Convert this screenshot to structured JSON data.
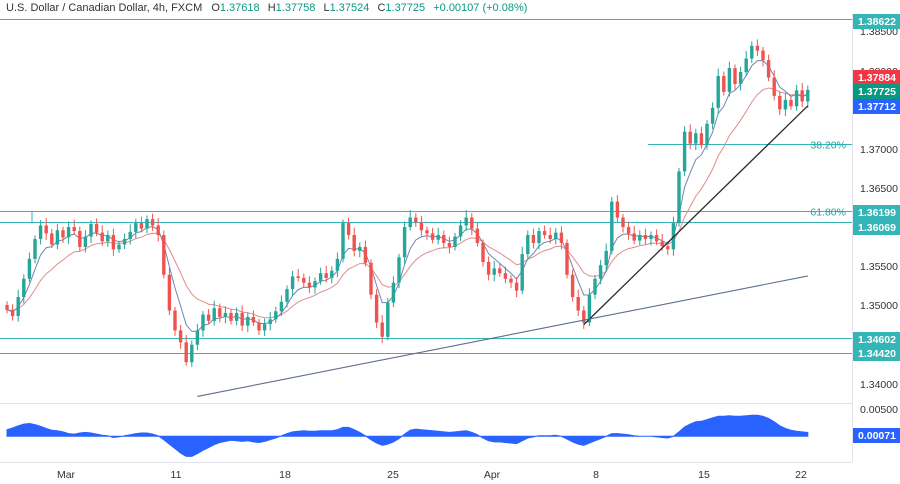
{
  "legend": {
    "symbol": "U.S. Dollar / Canadian Dollar, 4h, FXCM",
    "open_label": "O",
    "open": "1.37618",
    "high_label": "H",
    "high": "1.37758",
    "low_label": "L",
    "low": "1.37524",
    "close_label": "C",
    "close": "1.37725",
    "change": "+0.00107 (+0.08%)"
  },
  "colors": {
    "up": "#26a69a",
    "down": "#ef5350",
    "level": "#35b5b5",
    "fast_ma": "#6f86b0",
    "slow_ma": "#e08c8c",
    "trendline": "#2b2b2b",
    "long_trendline": "#5c6f8a",
    "oscillator": "#2962ff",
    "badge_last": "#089981",
    "badge_ma_red": "#f23645",
    "badge_ma_blue": "#2962ff",
    "badge_level": "#35b5b5"
  },
  "chart_data": {
    "type": "candlestick",
    "timeframe": "4h",
    "ylim": [
      1.3385,
      1.3868
    ],
    "price_ticks": [
      "1.38500",
      "1.38000",
      "1.37000",
      "1.36500",
      "1.35500",
      "1.35000",
      "1.34000"
    ],
    "x_ticks": [
      "Mar",
      "11",
      "18",
      "25",
      "Apr",
      "8",
      "15",
      "22"
    ],
    "closes": [
      1.3496,
      1.3488,
      1.3512,
      1.3535,
      1.356,
      1.3585,
      1.3602,
      1.3592,
      1.3578,
      1.3596,
      1.3587,
      1.36,
      1.3595,
      1.3575,
      1.3588,
      1.3604,
      1.3593,
      1.3582,
      1.359,
      1.3572,
      1.3578,
      1.3585,
      1.3594,
      1.3605,
      1.3598,
      1.361,
      1.3602,
      1.359,
      1.354,
      1.3495,
      1.347,
      1.3455,
      1.343,
      1.3452,
      1.347,
      1.349,
      1.3482,
      1.3498,
      1.3487,
      1.3492,
      1.3482,
      1.3492,
      1.3476,
      1.3487,
      1.348,
      1.347,
      1.3478,
      1.3484,
      1.3494,
      1.3506,
      1.3522,
      1.3538,
      1.3536,
      1.353,
      1.3524,
      1.3532,
      1.3542,
      1.3536,
      1.3545,
      1.356,
      1.3605,
      1.359,
      1.357,
      1.3575,
      1.3555,
      1.3515,
      1.348,
      1.3462,
      1.3505,
      1.353,
      1.3562,
      1.36,
      1.3612,
      1.3606,
      1.3596,
      1.3592,
      1.3584,
      1.359,
      1.358,
      1.3575,
      1.3588,
      1.3602,
      1.3612,
      1.3598,
      1.358,
      1.3556,
      1.354,
      1.3548,
      1.3542,
      1.3535,
      1.353,
      1.352,
      1.3566,
      1.359,
      1.358,
      1.3595,
      1.359,
      1.3585,
      1.3593,
      1.358,
      1.354,
      1.3512,
      1.3495,
      1.348,
      1.3515,
      1.3535,
      1.3552,
      1.357,
      1.3632,
      1.3612,
      1.36,
      1.3592,
      1.3583,
      1.359,
      1.3585,
      1.359,
      1.3582,
      1.3576,
      1.3572,
      1.3605,
      1.367,
      1.372,
      1.3705,
      1.3718,
      1.3703,
      1.373,
      1.375,
      1.379,
      1.377,
      1.38,
      1.378,
      1.3795,
      1.3812,
      1.3828,
      1.3822,
      1.381,
      1.3788,
      1.3765,
      1.3748,
      1.376,
      1.3752,
      1.3772,
      1.3758,
      1.37725
    ],
    "levels": [
      {
        "price": 1.38622,
        "label": "1.38622"
      },
      {
        "price": 1.36199,
        "label": "1.36199"
      },
      {
        "price": 1.36069,
        "label": "1.36069"
      },
      {
        "price": 1.34602,
        "label": "1.34602"
      },
      {
        "price": 1.3442,
        "label": "1.34420"
      }
    ],
    "fibonacci": [
      {
        "price": 1.37045,
        "label": "38.20%"
      },
      {
        "price": 1.36199,
        "label": "61.80%"
      }
    ],
    "trendlines": [
      {
        "from": [
          103,
          1.34773
        ],
        "to": [
          143,
          1.37525
        ]
      },
      {
        "from": [
          34,
          1.3387
        ],
        "to": [
          143,
          1.35385
        ]
      }
    ],
    "price_badges": [
      {
        "price": 1.38622,
        "label": "1.38622",
        "kind": "level"
      },
      {
        "price": 1.37884,
        "label": "1.37884",
        "kind": "ma_red"
      },
      {
        "price": 1.37725,
        "label": "1.37725",
        "kind": "last"
      },
      {
        "price": 1.37712,
        "label": "1.37712",
        "kind": "ma_blue"
      },
      {
        "price": 1.36199,
        "label": "1.36199",
        "kind": "level"
      },
      {
        "price": 1.36069,
        "label": "1.36069",
        "kind": "level"
      },
      {
        "price": 1.34602,
        "label": "1.34602",
        "kind": "level"
      },
      {
        "price": 1.3442,
        "label": "1.34420",
        "kind": "level"
      }
    ],
    "oscillator": {
      "ylim": [
        -0.0046,
        0.0058
      ],
      "ticks": [
        "0.00500"
      ],
      "current_label": "0.00071",
      "values": [
        0.0012,
        0.0015,
        0.0019,
        0.0022,
        0.0023,
        0.0021,
        0.0018,
        0.0014,
        0.0011,
        0.001,
        0.0008,
        0.0005,
        0.0004,
        0.0006,
        0.0007,
        0.0006,
        0.0004,
        0.0002,
        0.0001,
        -0.0002,
        -0.0001,
        0.0001,
        0.0003,
        0.0005,
        0.0006,
        0.0006,
        0.0004,
        0.0001,
        -0.0006,
        -0.0014,
        -0.0022,
        -0.003,
        -0.0036,
        -0.0036,
        -0.0031,
        -0.0025,
        -0.002,
        -0.0015,
        -0.0011,
        -0.0009,
        -0.0007,
        -0.0008,
        -0.0009,
        -0.0008,
        -0.001,
        -0.0011,
        -0.0009,
        -0.0006,
        -0.0003,
        0.0001,
        0.0005,
        0.0008,
        0.0009,
        0.001,
        0.0009,
        0.0009,
        0.001,
        0.001,
        0.001,
        0.0012,
        0.0016,
        0.0016,
        0.0012,
        0.0007,
        0.0001,
        -0.0006,
        -0.0012,
        -0.0016,
        -0.0014,
        -0.001,
        -0.0004,
        0.0004,
        0.0011,
        0.0013,
        0.0012,
        0.0011,
        0.001,
        0.0009,
        0.0008,
        0.0007,
        0.0008,
        0.0009,
        0.001,
        0.0007,
        0.0003,
        -0.0003,
        -0.0008,
        -0.001,
        -0.001,
        -0.0011,
        -0.0012,
        -0.0013,
        -0.0008,
        -0.0003,
        -0.0001,
        0.0001,
        0.0001,
        0.0001,
        0.0002,
        0.0,
        -0.0005,
        -0.001,
        -0.0014,
        -0.0016,
        -0.0012,
        -0.0008,
        -0.0004,
        0.0,
        0.0005,
        0.0005,
        0.0004,
        0.0003,
        0.0001,
        0.0,
        0.0,
        0.0,
        -0.0001,
        -0.0002,
        -0.0003,
        0.0,
        0.0008,
        0.0017,
        0.0022,
        0.0026,
        0.0027,
        0.003,
        0.0033,
        0.0036,
        0.0036,
        0.0037,
        0.0036,
        0.0036,
        0.0037,
        0.0038,
        0.0038,
        0.0036,
        0.0032,
        0.0026,
        0.0019,
        0.0014,
        0.0011,
        0.0009,
        0.0008,
        0.0007
      ]
    }
  }
}
